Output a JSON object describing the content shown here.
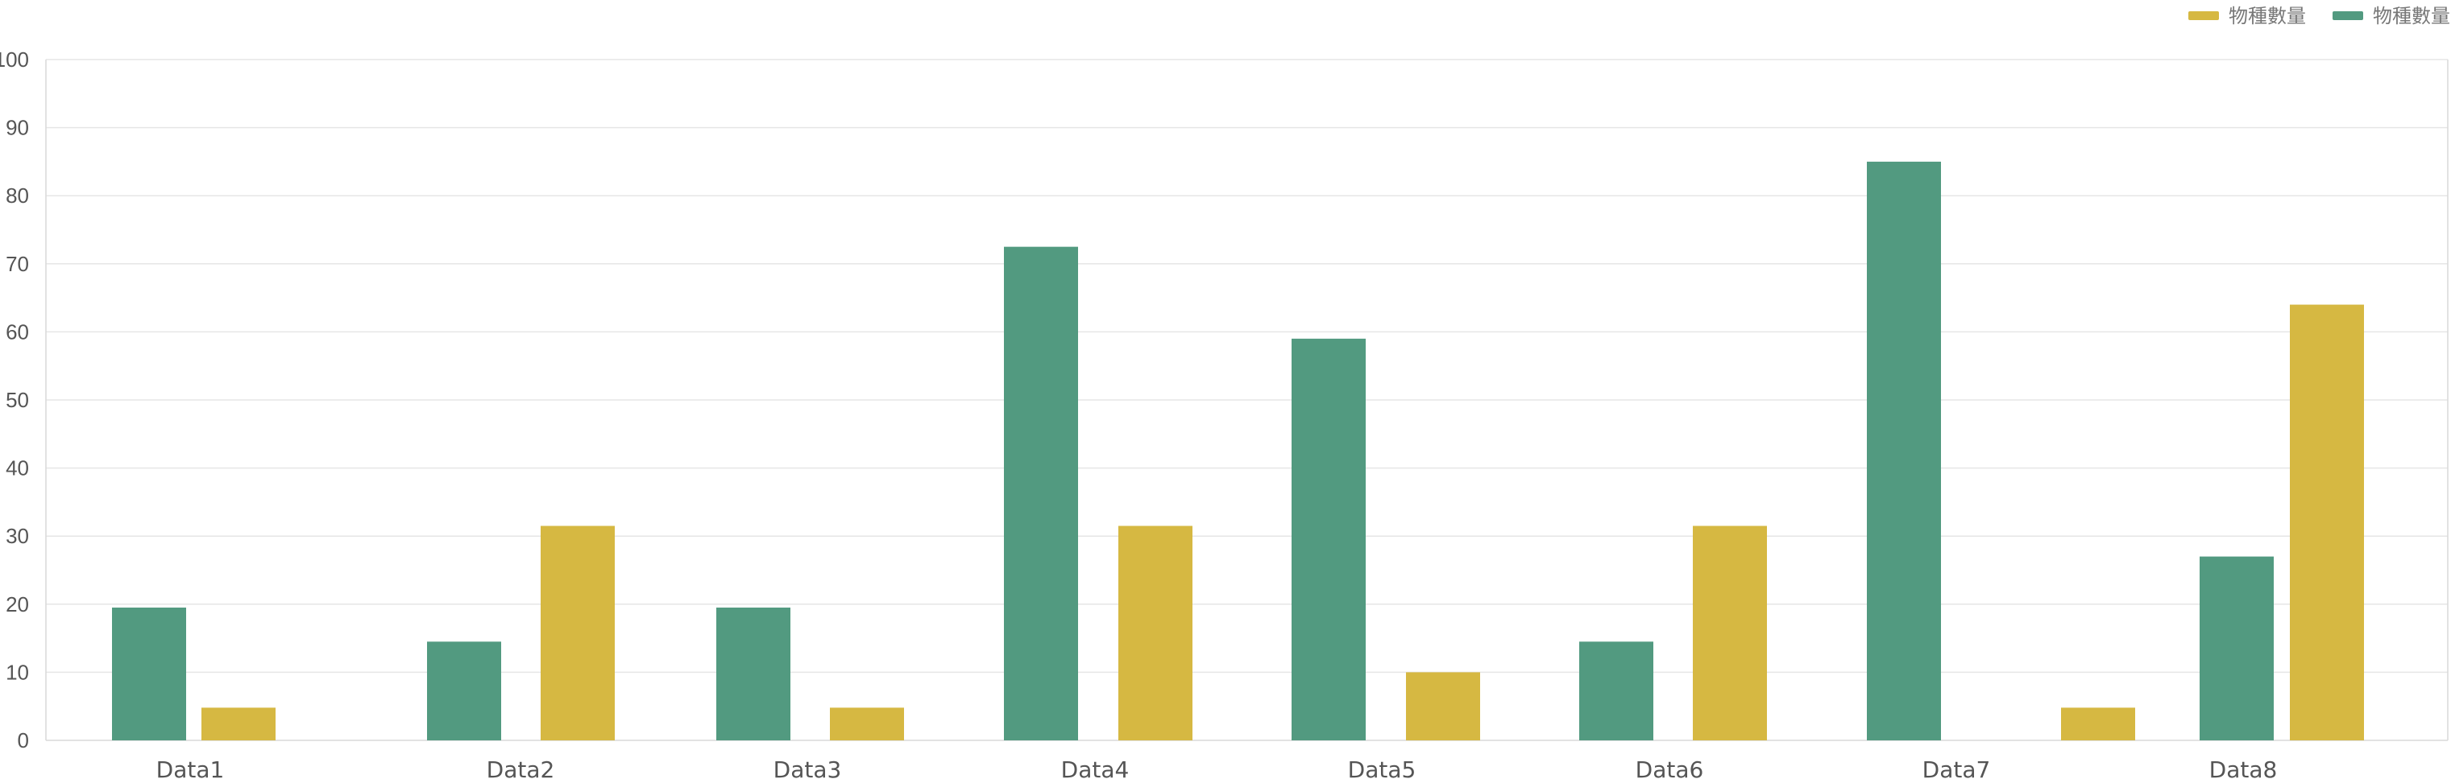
{
  "chart_data": {
    "type": "bar",
    "title": "",
    "xlabel": "",
    "ylabel": "",
    "ylim": [
      0,
      100
    ],
    "yticks": [
      0,
      10,
      20,
      30,
      40,
      50,
      60,
      70,
      80,
      90,
      100
    ],
    "grid": true,
    "legend_position": "top-right",
    "categories": [
      "Data1",
      "Data2",
      "Data3",
      "Data4",
      "Data5",
      "Data6",
      "Data7",
      "Data8"
    ],
    "series": [
      {
        "name": "物種數量",
        "color": "#529a80",
        "values": [
          19.5,
          14.5,
          19.5,
          72.5,
          59,
          14.5,
          85,
          27
        ]
      },
      {
        "name": "物種數量",
        "color": "#d6b842",
        "values": [
          4.8,
          31.5,
          4.8,
          31.5,
          10,
          31.5,
          4.8,
          64
        ]
      }
    ],
    "legend_order": [
      1,
      0
    ]
  }
}
